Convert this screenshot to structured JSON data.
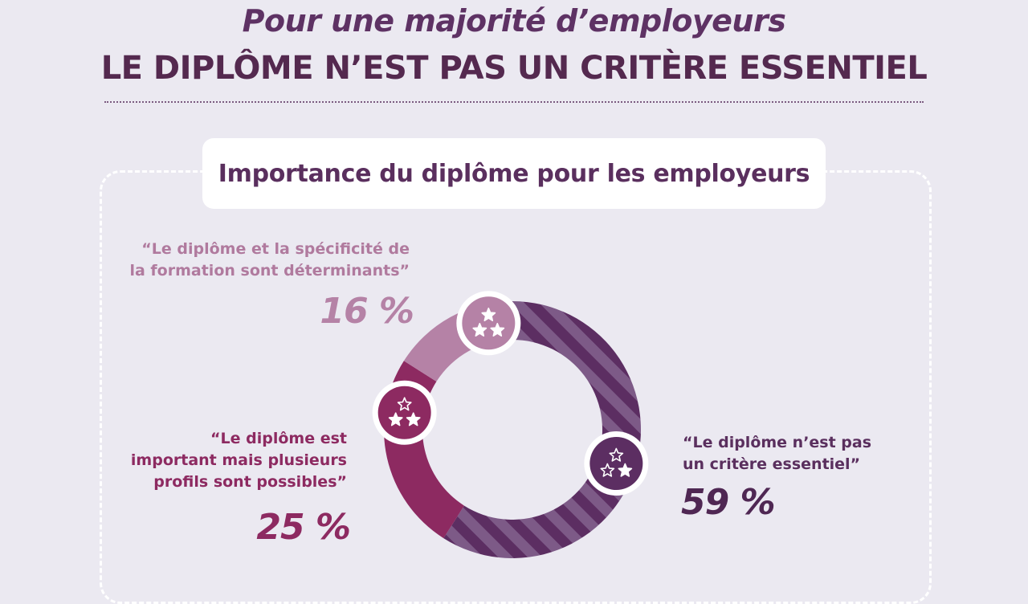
{
  "header": {
    "title_line1": "Pour une majorité d’employeurs",
    "title_line2": "LE DIPLÔME N’EST PAS UN CRITÈRE ESSENTIEL"
  },
  "subtitle": "Importance du diplôme pour les employeurs",
  "labels": {
    "q16": [
      "“Le diplôme et la spécificité de",
      "la formation sont déterminants”"
    ],
    "p16": "16 %",
    "q25": [
      "“Le diplôme est",
      "important mais plusieurs",
      "profils sont possibles”"
    ],
    "p25": "25 %",
    "q59": [
      "“Le diplôme n’est pas",
      "un critère essentiel”"
    ],
    "p59": "59 %"
  },
  "colors": {
    "background": "#ebe9f1",
    "title": "#5e3264",
    "slice_59": "#5c2e62",
    "slice_59_stripe": "#7d5a87",
    "slice_25": "#8d2a61",
    "slice_16": "#b582a6"
  },
  "chart_data": {
    "type": "pie",
    "variant": "donut",
    "title": "Importance du diplôme pour les employeurs",
    "series": [
      {
        "values": [
          59,
          25,
          16
        ],
        "unit": "%",
        "categories": [
          "Le diplôme n’est pas un critère essentiel",
          "Le diplôme est important mais plusieurs profils sont possibles",
          "Le diplôme et la spécificité de la formation sont déterminants"
        ],
        "icons": [
          "star-outline-1-icon",
          "star-outline-2-icon",
          "star-filled-3-icon"
        ]
      }
    ],
    "legend": "none"
  }
}
